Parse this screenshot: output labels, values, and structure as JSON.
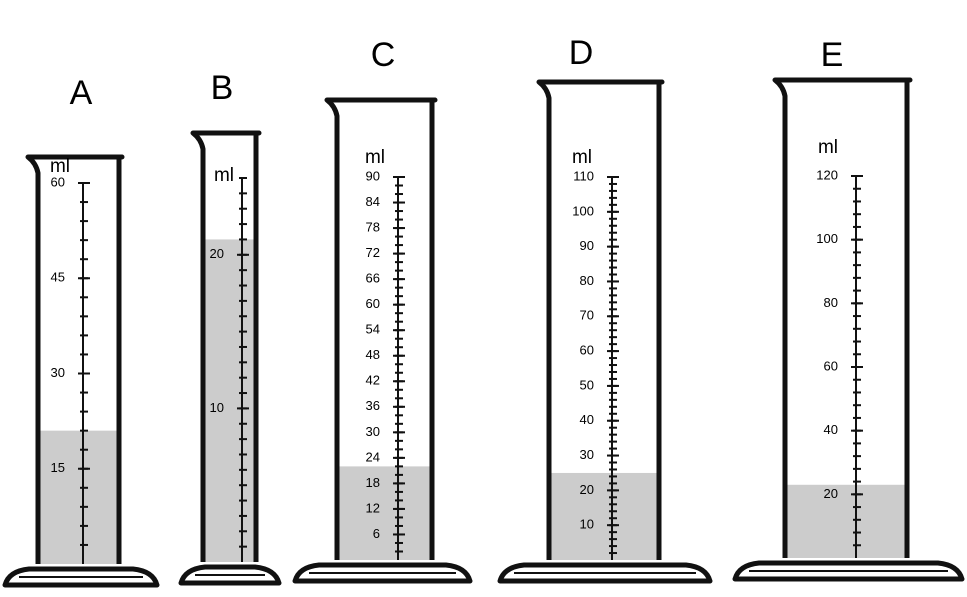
{
  "cylinders": [
    {
      "label": "A",
      "unit": "ml",
      "ylim": [
        0,
        60
      ],
      "ticks": [
        15,
        30,
        45,
        60
      ],
      "level": 21
    },
    {
      "label": "B",
      "unit": "ml",
      "ylim": [
        0,
        25
      ],
      "ticks": [
        10,
        20
      ],
      "level": 21
    },
    {
      "label": "C",
      "unit": "ml",
      "ylim": [
        0,
        90
      ],
      "ticks": [
        6,
        12,
        18,
        24,
        30,
        36,
        42,
        48,
        54,
        60,
        66,
        72,
        78,
        84,
        90
      ],
      "level": 22
    },
    {
      "label": "D",
      "unit": "ml",
      "ylim": [
        0,
        110
      ],
      "ticks": [
        10,
        20,
        30,
        40,
        50,
        60,
        70,
        80,
        90,
        100,
        110
      ],
      "level": 25
    },
    {
      "label": "E",
      "unit": "ml",
      "ylim": [
        0,
        120
      ],
      "ticks": [
        20,
        40,
        60,
        80,
        100,
        120
      ],
      "level": 23
    }
  ]
}
